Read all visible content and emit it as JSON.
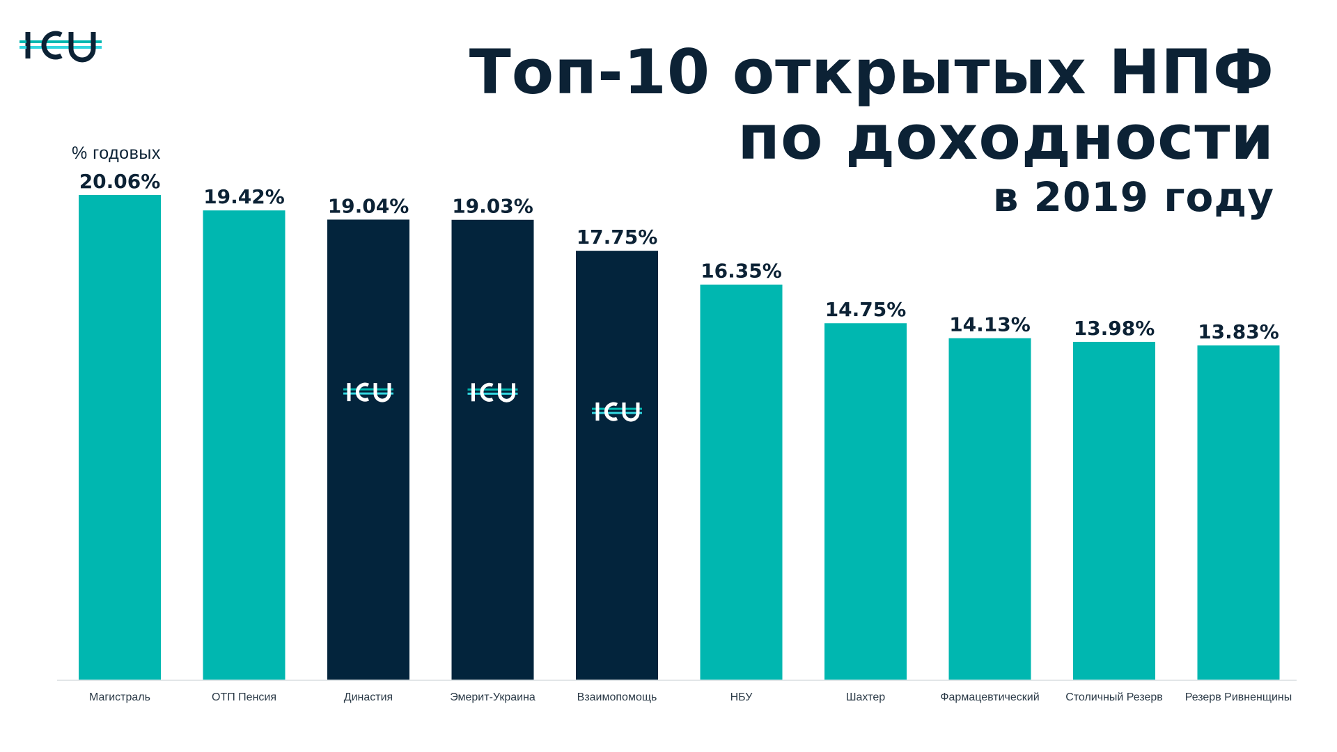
{
  "brand": {
    "name": "ICU",
    "accent": "#00b7b0",
    "dark": "#03243c",
    "line_light": "#33d6e0"
  },
  "title": {
    "line1": "Топ-10 открытых НПФ",
    "line2": "по доходности",
    "line3": "в 2019 году"
  },
  "chart_data": {
    "type": "bar",
    "title": "Топ-10 открытых НПФ по доходности в 2019 году",
    "ylabel": "% годовых",
    "xlabel": "",
    "ylim": [
      0,
      20.06
    ],
    "grid": false,
    "categories": [
      "Магистраль",
      "ОТП Пенсия",
      "Династия",
      "Эмерит-Украина",
      "Взаимопомощь",
      "НБУ",
      "Шахтер",
      "Фармацевтический",
      "Столичный Резерв",
      "Резерв Ривненщины"
    ],
    "values": [
      20.06,
      19.42,
      19.04,
      19.03,
      17.75,
      16.35,
      14.75,
      14.13,
      13.98,
      13.83
    ],
    "value_labels": [
      "20.06%",
      "19.42%",
      "19.04%",
      "19.03%",
      "17.75%",
      "16.35%",
      "14.75%",
      "14.13%",
      "13.98%",
      "13.83%"
    ],
    "icu_managed": [
      false,
      false,
      true,
      true,
      true,
      false,
      false,
      false,
      false,
      false
    ]
  }
}
